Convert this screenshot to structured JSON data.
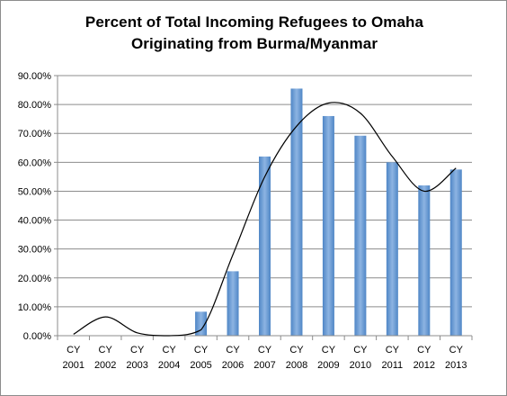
{
  "chart_data": {
    "type": "bar",
    "title": "Percent of Total Incoming Refugees to Omaha",
    "subtitle": "Originating from Burma/Myanmar",
    "categories": [
      [
        "CY",
        "2001"
      ],
      [
        "CY",
        "2002"
      ],
      [
        "CY",
        "2003"
      ],
      [
        "CY",
        "2004"
      ],
      [
        "CY",
        "2005"
      ],
      [
        "CY",
        "2006"
      ],
      [
        "CY",
        "2007"
      ],
      [
        "CY",
        "2008"
      ],
      [
        "CY",
        "2009"
      ],
      [
        "CY",
        "2010"
      ],
      [
        "CY",
        "2011"
      ],
      [
        "CY",
        "2012"
      ],
      [
        "CY",
        "2013"
      ]
    ],
    "values": [
      0,
      0,
      0,
      0,
      8.3,
      22.3,
      62.0,
      85.5,
      76.0,
      69.2,
      60.0,
      52.0,
      57.5
    ],
    "trendline": {
      "type": "polynomial",
      "values": [
        0.5,
        6.5,
        1.0,
        -4.0,
        2.0,
        28.0,
        55.0,
        72.5,
        80.5,
        77.0,
        62.0,
        50.0,
        58.0
      ]
    },
    "ylim": [
      0,
      90
    ],
    "yticks": [
      0,
      10,
      20,
      30,
      40,
      50,
      60,
      70,
      80,
      90
    ],
    "ytick_labels": [
      "0.00%",
      "10.00%",
      "20.00%",
      "30.00%",
      "40.00%",
      "50.00%",
      "60.00%",
      "70.00%",
      "80.00%",
      "90.00%"
    ],
    "grid": true,
    "legend": "none",
    "bar_color": "#4f86c6",
    "bar_color_light": "#8db4e2",
    "trend_color": "#000000",
    "grid_color": "#8c8c8c"
  }
}
